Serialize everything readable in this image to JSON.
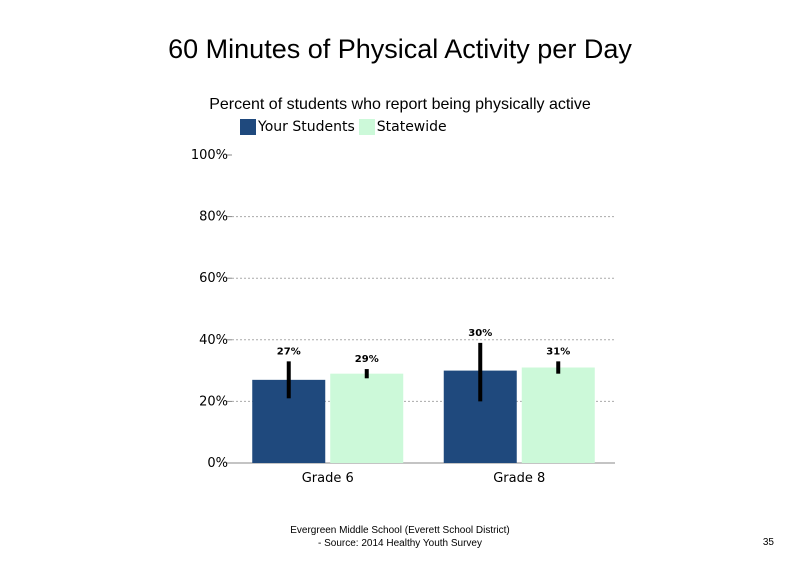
{
  "colors": {
    "your_students": "#1f497d",
    "statewide": "#ccf9d9",
    "grid": "#aaaaaa",
    "error_bar": "#000000"
  },
  "footer": {
    "line1": "Evergreen Middle School (Everett School District)",
    "line2": "- Source: 2014 Healthy  Youth Survey",
    "page_number": "35"
  },
  "chart_data": {
    "type": "bar",
    "title": "60 Minutes of Physical Activity per Day",
    "subtitle": "Percent of students  who report being physically active",
    "categories": [
      "Grade 6",
      "Grade 8"
    ],
    "series": [
      {
        "name": "Your Students",
        "values": [
          27,
          30
        ],
        "data_labels": [
          "27%",
          "30%"
        ],
        "error_low": [
          21,
          20
        ],
        "error_high": [
          33,
          39
        ]
      },
      {
        "name": "Statewide",
        "values": [
          29,
          31
        ],
        "data_labels": [
          "29%",
          "31%"
        ],
        "error_low": [
          27.5,
          29
        ],
        "error_high": [
          30.5,
          33
        ]
      }
    ],
    "ylim": [
      0,
      100
    ],
    "yticks": [
      0,
      20,
      40,
      60,
      80,
      100
    ],
    "ytick_labels": [
      "0%",
      "20%",
      "40%",
      "60%",
      "80%",
      "100%"
    ],
    "xlabel": "",
    "ylabel": "",
    "grid": true,
    "legend_position": "top-left"
  }
}
